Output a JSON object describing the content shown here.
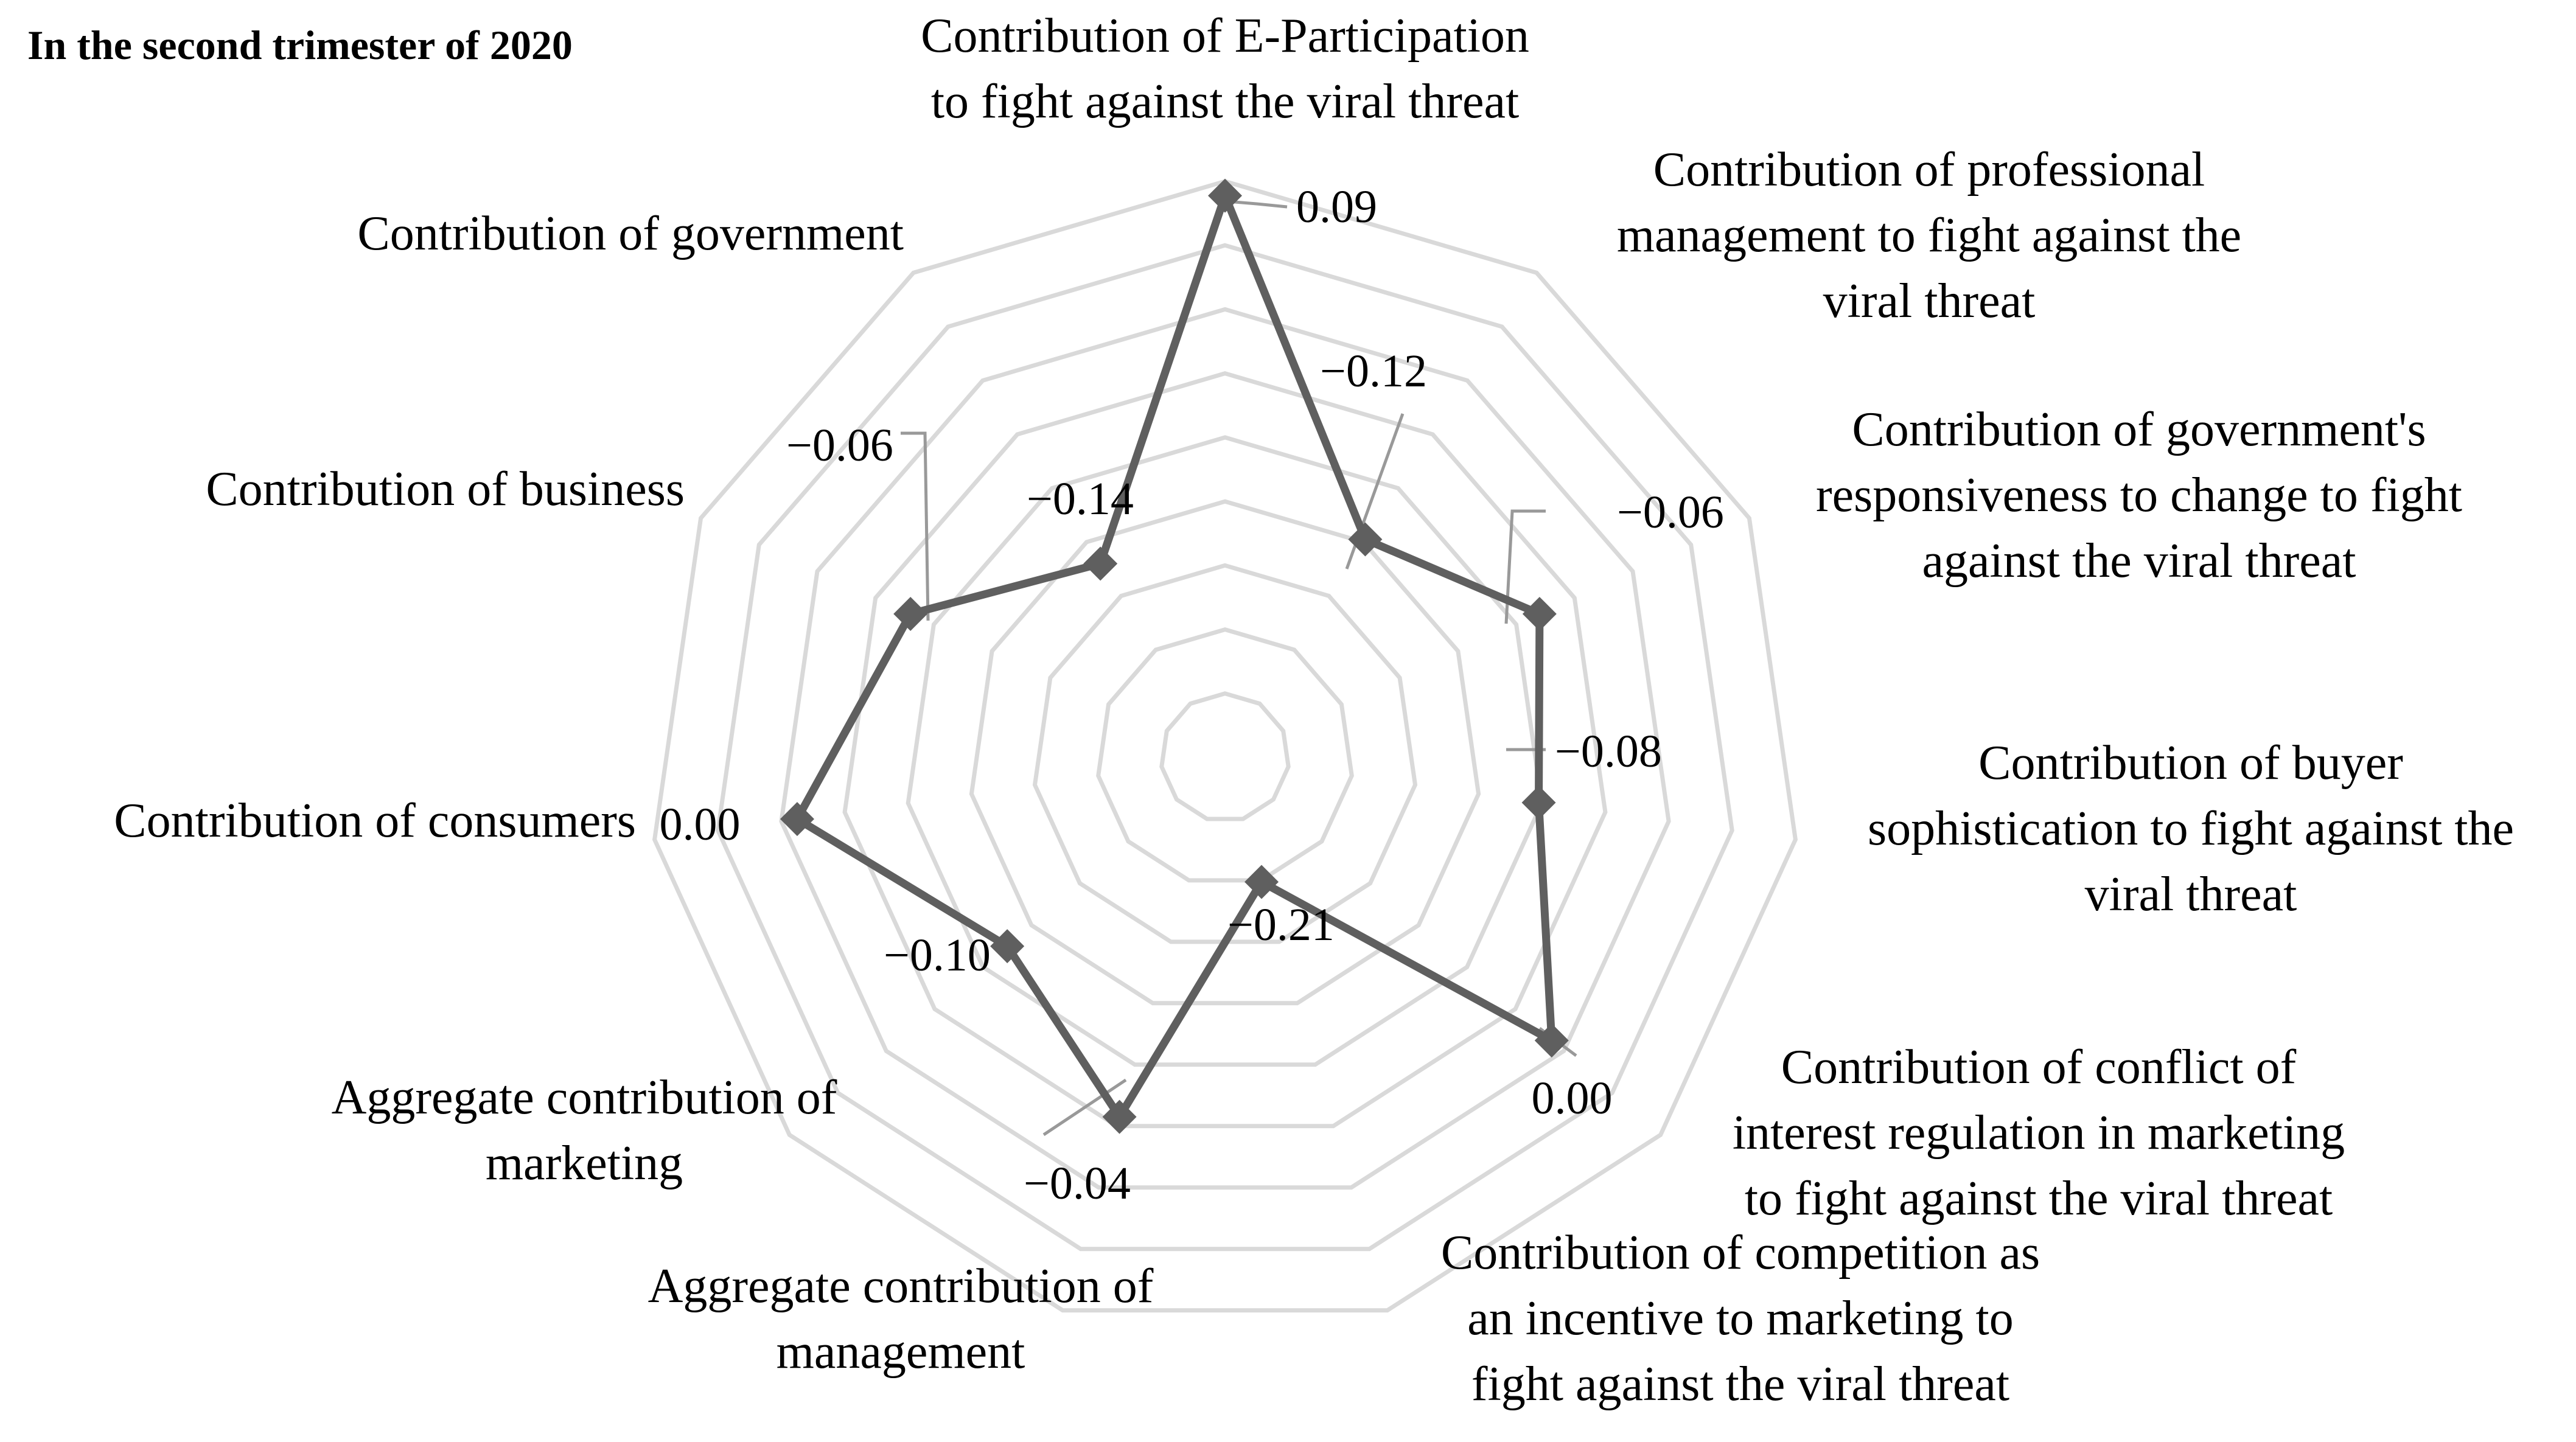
{
  "chart_data": {
    "type": "radar",
    "title": "In the second trimester of 2020",
    "categories": [
      [
        "Contribution of E-Participation",
        "to fight against the viral threat"
      ],
      [
        "Contribution of professional",
        "management to fight against the",
        "viral threat"
      ],
      [
        "Contribution of government's",
        "responsiveness to change to fight",
        "against the viral threat"
      ],
      [
        "Contribution of buyer",
        "sophistication to fight against the",
        "viral threat"
      ],
      [
        "Contribution of conflict of",
        "interest regulation in marketing",
        "to fight against the viral threat"
      ],
      [
        "Contribution of competition as",
        "an incentive to marketing to",
        "fight against the viral threat"
      ],
      [
        "Aggregate contribution of",
        "management"
      ],
      [
        "Aggregate contribution of",
        "marketing"
      ],
      [
        "Contribution of consumers"
      ],
      [
        "Contribution of business"
      ],
      [
        "Contribution of government"
      ]
    ],
    "series": [
      {
        "values": [
          0.09,
          -0.12,
          -0.06,
          -0.08,
          0.0,
          -0.21,
          -0.04,
          -0.1,
          0.0,
          -0.06,
          -0.14
        ]
      }
    ],
    "value_labels": [
      "0.09",
      "−0.12",
      "−0.06",
      "−0.08",
      "0.00",
      "−0.21",
      "−0.04",
      "−0.10",
      "0.00",
      "−0.06",
      "−0.14"
    ],
    "rlim": [
      -0.3,
      0.1
    ],
    "grid_rings": 9,
    "grid": true,
    "legend": "none",
    "colors": {
      "series": "#5f5f5f",
      "grid": "#d9d9d9",
      "leader": "#999999"
    }
  }
}
